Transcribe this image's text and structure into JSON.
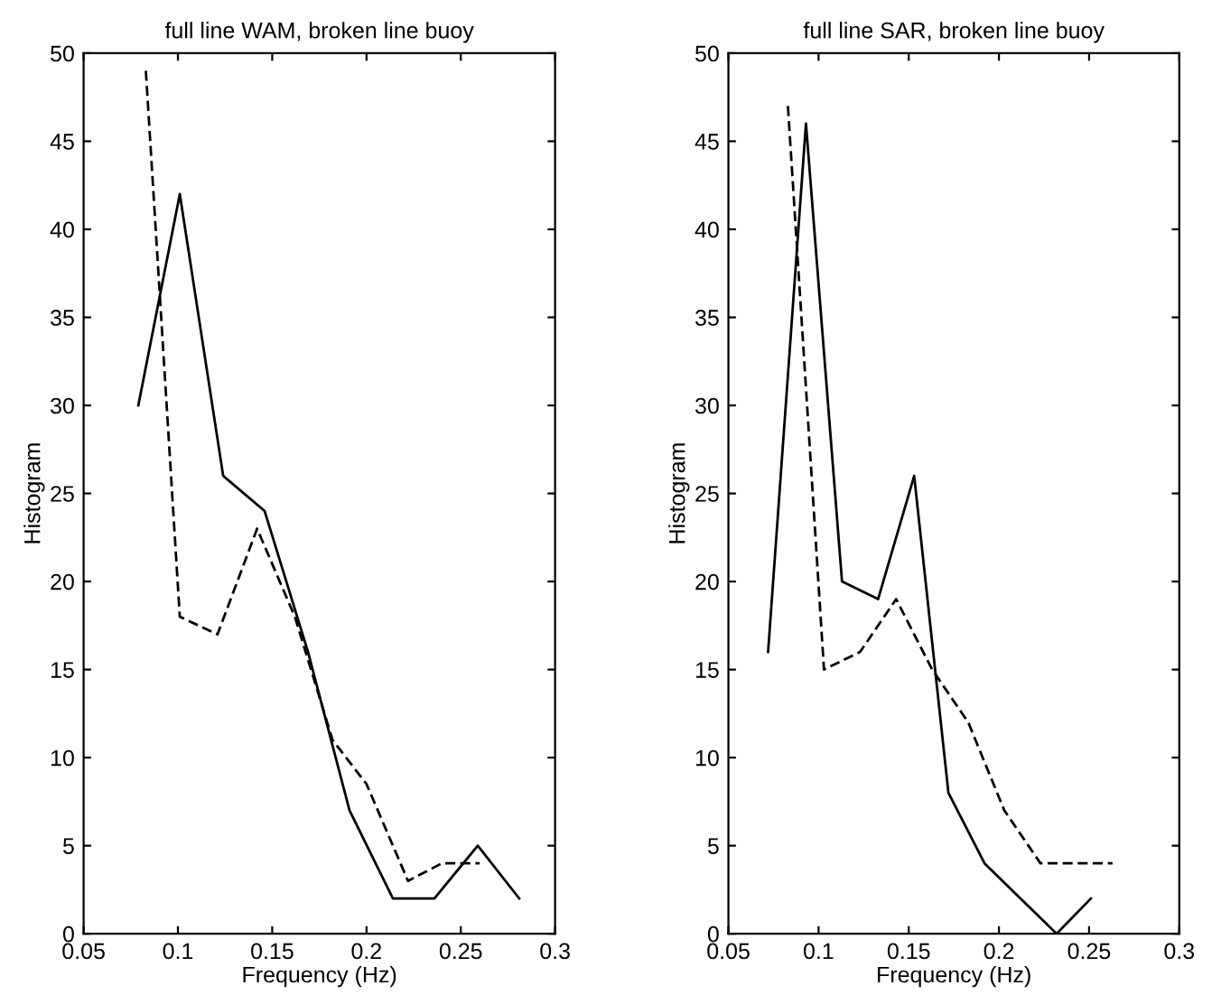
{
  "chart_data": [
    {
      "type": "line",
      "title": "full line WAM, broken line buoy",
      "xlabel": "Frequency (Hz)",
      "ylabel": "Histogram",
      "series": [
        {
          "color": "#000000",
          "line_style": "solid",
          "x": [
            0.079,
            0.101,
            0.124,
            0.146,
            0.169,
            0.191,
            0.214,
            0.236,
            0.259,
            0.281
          ],
          "values": [
            30,
            42,
            26,
            24,
            16,
            7,
            2,
            2,
            5,
            2
          ]
        },
        {
          "color": "#000000",
          "line_style": "dashed",
          "x": [
            0.083,
            0.101,
            0.121,
            0.142,
            0.162,
            0.182,
            0.2,
            0.222,
            0.24,
            0.26
          ],
          "values": [
            49,
            18,
            17,
            23,
            18,
            11,
            8.5,
            3,
            4,
            4
          ]
        }
      ],
      "xlim": [
        0.05,
        0.3
      ],
      "xticks": [
        0.05,
        0.1,
        0.15,
        0.2,
        0.25,
        0.3
      ],
      "ylim": [
        0,
        50
      ],
      "yticks": [
        0,
        5,
        10,
        15,
        20,
        25,
        30,
        35,
        40,
        45,
        50
      ],
      "grid": false,
      "legend": false
    },
    {
      "type": "line",
      "title": "full line SAR, broken line buoy",
      "xlabel": "Frequency (Hz)",
      "ylabel": "Histogram",
      "series": [
        {
          "color": "#000000",
          "line_style": "solid",
          "x": [
            0.072,
            0.093,
            0.113,
            0.133,
            0.153,
            0.172,
            0.192,
            0.212,
            0.232,
            0.251
          ],
          "values": [
            16,
            46,
            20,
            19,
            26,
            8,
            4,
            2,
            0,
            2
          ]
        },
        {
          "color": "#000000",
          "line_style": "dashed",
          "x": [
            0.083,
            0.103,
            0.123,
            0.143,
            0.163,
            0.183,
            0.203,
            0.223,
            0.243,
            0.263
          ],
          "values": [
            47,
            15,
            16,
            19,
            15,
            12,
            7,
            4,
            4,
            4
          ]
        }
      ],
      "xlim": [
        0.05,
        0.3
      ],
      "xticks": [
        0.05,
        0.1,
        0.15,
        0.2,
        0.25,
        0.3
      ],
      "ylim": [
        0,
        50
      ],
      "yticks": [
        0,
        5,
        10,
        15,
        20,
        25,
        30,
        35,
        40,
        45,
        50
      ],
      "grid": false,
      "legend": false
    }
  ]
}
